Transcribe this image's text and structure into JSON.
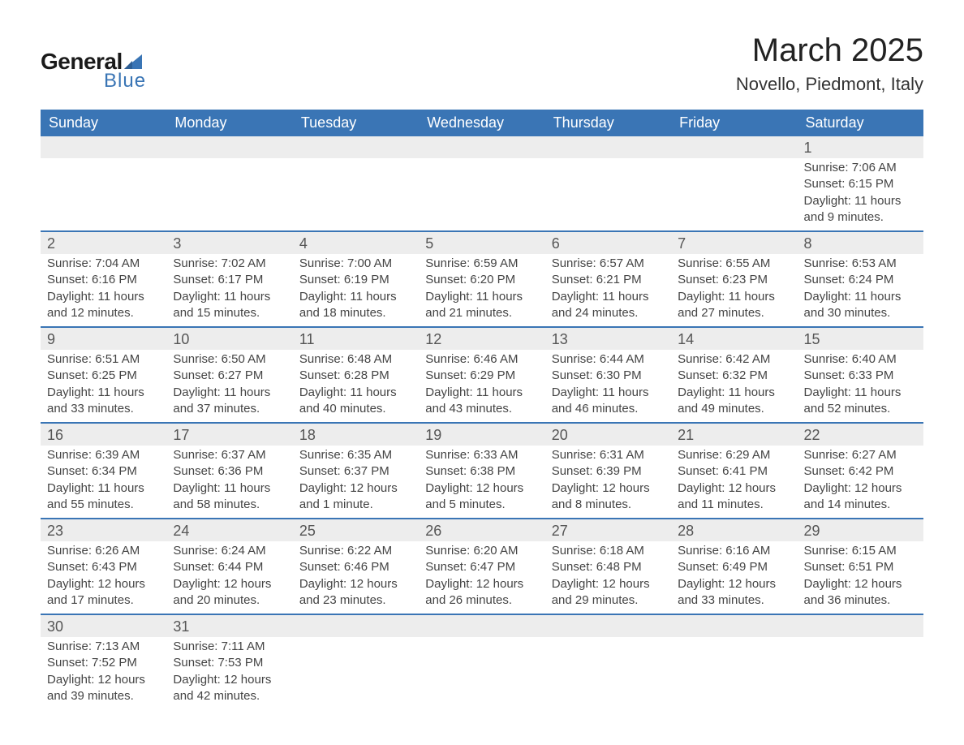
{
  "logo": {
    "word1": "General",
    "word2": "Blue",
    "sail_color": "#3a75b5"
  },
  "title": "March 2025",
  "subtitle": "Novello, Piedmont, Italy",
  "colors": {
    "header_bg": "#3a75b5",
    "header_text": "#ffffff",
    "daynum_bg": "#ededed",
    "row_border": "#3a75b5",
    "body_text": "#444444",
    "page_bg": "#ffffff"
  },
  "fonts": {
    "title_size_pt": 30,
    "subtitle_size_pt": 16,
    "header_size_pt": 13,
    "daynum_size_pt": 13,
    "body_size_pt": 11
  },
  "weekdays": [
    "Sunday",
    "Monday",
    "Tuesday",
    "Wednesday",
    "Thursday",
    "Friday",
    "Saturday"
  ],
  "weeks": [
    [
      null,
      null,
      null,
      null,
      null,
      null,
      {
        "n": "1",
        "sunrise": "7:06 AM",
        "sunset": "6:15 PM",
        "daylight": "11 hours and 9 minutes."
      }
    ],
    [
      {
        "n": "2",
        "sunrise": "7:04 AM",
        "sunset": "6:16 PM",
        "daylight": "11 hours and 12 minutes."
      },
      {
        "n": "3",
        "sunrise": "7:02 AM",
        "sunset": "6:17 PM",
        "daylight": "11 hours and 15 minutes."
      },
      {
        "n": "4",
        "sunrise": "7:00 AM",
        "sunset": "6:19 PM",
        "daylight": "11 hours and 18 minutes."
      },
      {
        "n": "5",
        "sunrise": "6:59 AM",
        "sunset": "6:20 PM",
        "daylight": "11 hours and 21 minutes."
      },
      {
        "n": "6",
        "sunrise": "6:57 AM",
        "sunset": "6:21 PM",
        "daylight": "11 hours and 24 minutes."
      },
      {
        "n": "7",
        "sunrise": "6:55 AM",
        "sunset": "6:23 PM",
        "daylight": "11 hours and 27 minutes."
      },
      {
        "n": "8",
        "sunrise": "6:53 AM",
        "sunset": "6:24 PM",
        "daylight": "11 hours and 30 minutes."
      }
    ],
    [
      {
        "n": "9",
        "sunrise": "6:51 AM",
        "sunset": "6:25 PM",
        "daylight": "11 hours and 33 minutes."
      },
      {
        "n": "10",
        "sunrise": "6:50 AM",
        "sunset": "6:27 PM",
        "daylight": "11 hours and 37 minutes."
      },
      {
        "n": "11",
        "sunrise": "6:48 AM",
        "sunset": "6:28 PM",
        "daylight": "11 hours and 40 minutes."
      },
      {
        "n": "12",
        "sunrise": "6:46 AM",
        "sunset": "6:29 PM",
        "daylight": "11 hours and 43 minutes."
      },
      {
        "n": "13",
        "sunrise": "6:44 AM",
        "sunset": "6:30 PM",
        "daylight": "11 hours and 46 minutes."
      },
      {
        "n": "14",
        "sunrise": "6:42 AM",
        "sunset": "6:32 PM",
        "daylight": "11 hours and 49 minutes."
      },
      {
        "n": "15",
        "sunrise": "6:40 AM",
        "sunset": "6:33 PM",
        "daylight": "11 hours and 52 minutes."
      }
    ],
    [
      {
        "n": "16",
        "sunrise": "6:39 AM",
        "sunset": "6:34 PM",
        "daylight": "11 hours and 55 minutes."
      },
      {
        "n": "17",
        "sunrise": "6:37 AM",
        "sunset": "6:36 PM",
        "daylight": "11 hours and 58 minutes."
      },
      {
        "n": "18",
        "sunrise": "6:35 AM",
        "sunset": "6:37 PM",
        "daylight": "12 hours and 1 minute."
      },
      {
        "n": "19",
        "sunrise": "6:33 AM",
        "sunset": "6:38 PM",
        "daylight": "12 hours and 5 minutes."
      },
      {
        "n": "20",
        "sunrise": "6:31 AM",
        "sunset": "6:39 PM",
        "daylight": "12 hours and 8 minutes."
      },
      {
        "n": "21",
        "sunrise": "6:29 AM",
        "sunset": "6:41 PM",
        "daylight": "12 hours and 11 minutes."
      },
      {
        "n": "22",
        "sunrise": "6:27 AM",
        "sunset": "6:42 PM",
        "daylight": "12 hours and 14 minutes."
      }
    ],
    [
      {
        "n": "23",
        "sunrise": "6:26 AM",
        "sunset": "6:43 PM",
        "daylight": "12 hours and 17 minutes."
      },
      {
        "n": "24",
        "sunrise": "6:24 AM",
        "sunset": "6:44 PM",
        "daylight": "12 hours and 20 minutes."
      },
      {
        "n": "25",
        "sunrise": "6:22 AM",
        "sunset": "6:46 PM",
        "daylight": "12 hours and 23 minutes."
      },
      {
        "n": "26",
        "sunrise": "6:20 AM",
        "sunset": "6:47 PM",
        "daylight": "12 hours and 26 minutes."
      },
      {
        "n": "27",
        "sunrise": "6:18 AM",
        "sunset": "6:48 PM",
        "daylight": "12 hours and 29 minutes."
      },
      {
        "n": "28",
        "sunrise": "6:16 AM",
        "sunset": "6:49 PM",
        "daylight": "12 hours and 33 minutes."
      },
      {
        "n": "29",
        "sunrise": "6:15 AM",
        "sunset": "6:51 PM",
        "daylight": "12 hours and 36 minutes."
      }
    ],
    [
      {
        "n": "30",
        "sunrise": "7:13 AM",
        "sunset": "7:52 PM",
        "daylight": "12 hours and 39 minutes."
      },
      {
        "n": "31",
        "sunrise": "7:11 AM",
        "sunset": "7:53 PM",
        "daylight": "12 hours and 42 minutes."
      },
      null,
      null,
      null,
      null,
      null
    ]
  ]
}
